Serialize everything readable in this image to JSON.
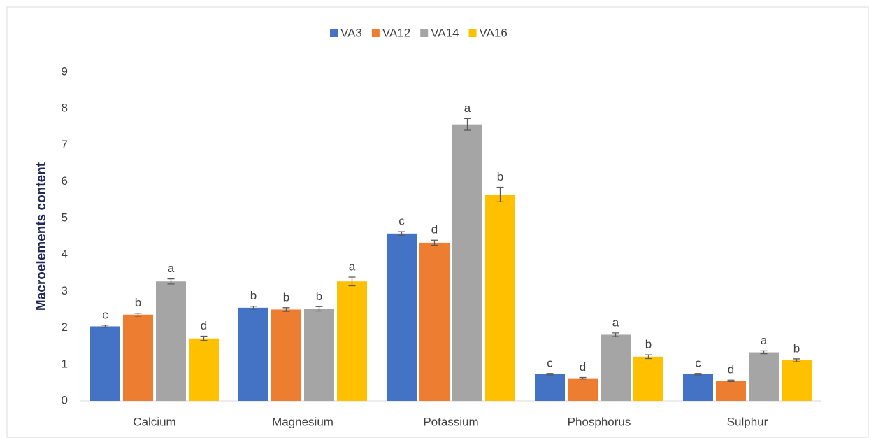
{
  "chart_data": {
    "type": "bar",
    "y_label": "Macroelements content",
    "categories": [
      "Calcium",
      "Magnesium",
      "Potassium",
      "Phosphorus",
      "Sulphur"
    ],
    "series": [
      {
        "name": "VA3",
        "color": "#4472c4",
        "values": [
          2.04,
          2.55,
          4.58,
          0.73,
          0.73
        ],
        "errors": [
          0.03,
          0.04,
          0.05,
          0.02,
          0.02
        ],
        "labels": [
          "c",
          "b",
          "c",
          "c",
          "c"
        ]
      },
      {
        "name": "VA12",
        "color": "#ed7d31",
        "values": [
          2.36,
          2.5,
          4.33,
          0.62,
          0.55
        ],
        "errors": [
          0.04,
          0.05,
          0.07,
          0.02,
          0.02
        ],
        "labels": [
          "b",
          "b",
          "d",
          "d",
          "d"
        ]
      },
      {
        "name": "VA14",
        "color": "#a5a5a5",
        "values": [
          3.27,
          2.52,
          7.57,
          1.81,
          1.33
        ],
        "errors": [
          0.07,
          0.06,
          0.16,
          0.05,
          0.04
        ],
        "labels": [
          "a",
          "b",
          "a",
          "a",
          "a"
        ]
      },
      {
        "name": "VA16",
        "color": "#ffc000",
        "values": [
          1.71,
          3.27,
          5.65,
          1.21,
          1.11
        ],
        "errors": [
          0.06,
          0.12,
          0.2,
          0.05,
          0.04
        ],
        "labels": [
          "d",
          "a",
          "b",
          "b",
          "b"
        ]
      }
    ],
    "ylim": [
      0,
      9
    ],
    "yticks": [
      0,
      1,
      2,
      3,
      4,
      5,
      6,
      7,
      8,
      9
    ],
    "grid": false,
    "legend": "top"
  }
}
